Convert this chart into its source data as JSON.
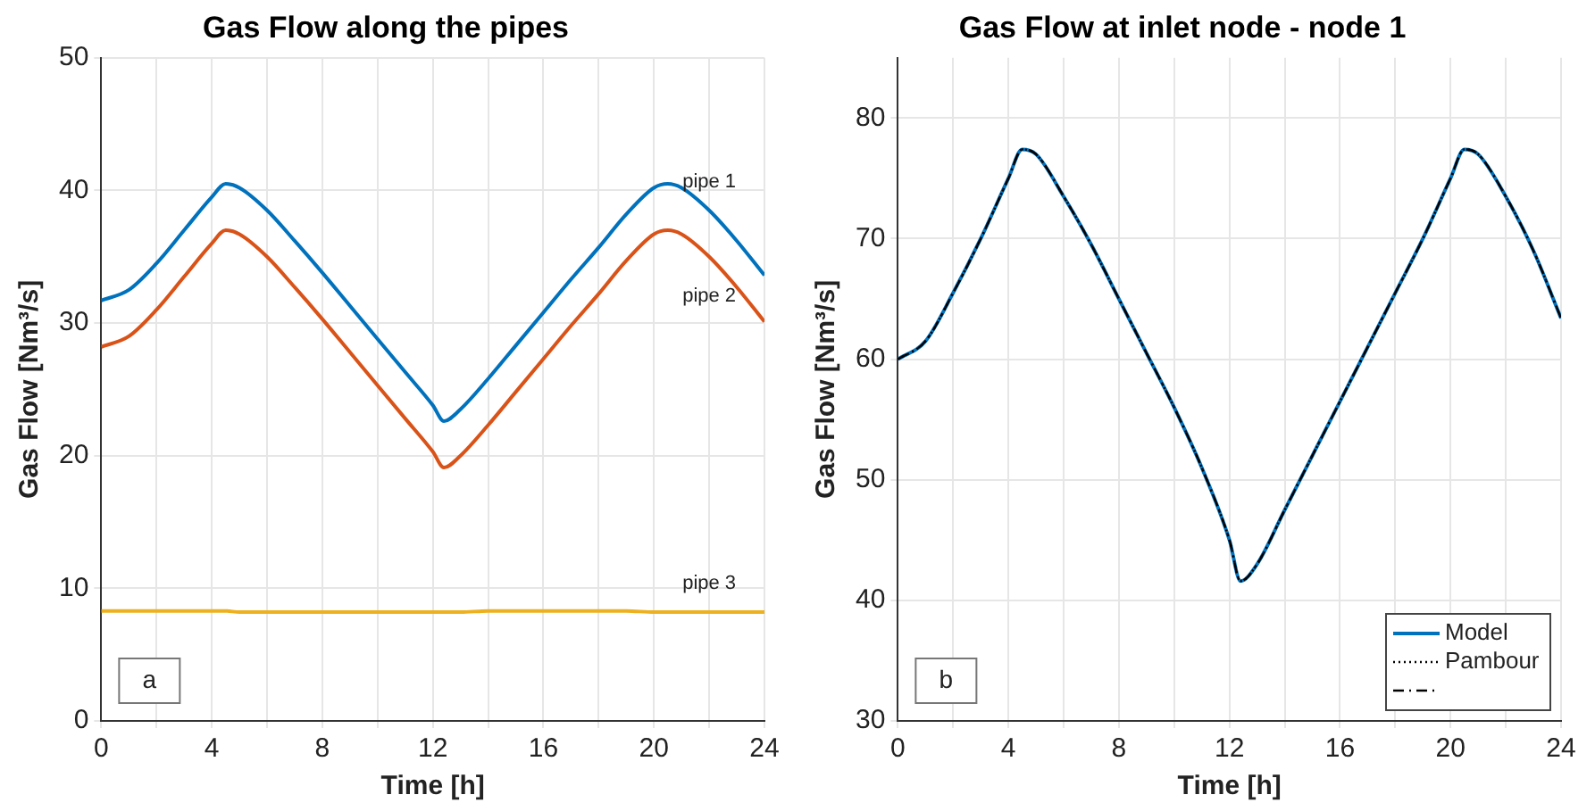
{
  "chart_data": [
    {
      "type": "line",
      "title": "Gas Flow along the pipes",
      "xlabel": "Time [h]",
      "ylabel": "Gas Flow [Nm³/s]",
      "x": [
        0,
        1,
        2,
        3,
        4,
        4.5,
        5,
        6,
        7,
        8,
        9,
        10,
        11,
        12,
        12.4,
        13,
        14,
        15,
        16,
        17,
        18,
        19,
        20,
        20.5,
        21,
        22,
        23,
        24
      ],
      "series": [
        {
          "name": "pipe 1",
          "color": "#0072bd",
          "values": [
            31.7,
            32.5,
            34.5,
            37,
            39.5,
            40.5,
            40.2,
            38.5,
            36.2,
            33.8,
            31.3,
            28.8,
            26.3,
            23.8,
            22.6,
            23.5,
            25.8,
            28.3,
            30.8,
            33.3,
            35.7,
            38.2,
            40.2,
            40.5,
            40.2,
            38.5,
            36.2,
            33.6
          ]
        },
        {
          "name": "pipe 2",
          "color": "#d95319",
          "values": [
            28.2,
            29,
            31,
            33.5,
            36,
            37,
            36.7,
            35,
            32.7,
            30.3,
            27.8,
            25.3,
            22.8,
            20.3,
            19.1,
            20,
            22.3,
            24.8,
            27.3,
            29.8,
            32.2,
            34.7,
            36.7,
            37,
            36.7,
            35,
            32.7,
            30.1
          ]
        },
        {
          "name": "pipe 3",
          "color": "#edb120",
          "values": [
            8.3,
            8.3,
            8.3,
            8.3,
            8.3,
            8.3,
            8.2,
            8.2,
            8.2,
            8.2,
            8.2,
            8.2,
            8.2,
            8.2,
            8.2,
            8.2,
            8.3,
            8.3,
            8.3,
            8.3,
            8.3,
            8.3,
            8.2,
            8.2,
            8.2,
            8.2,
            8.2,
            8.2
          ]
        }
      ],
      "xlim": [
        0,
        24
      ],
      "xticks": [
        0,
        {
          "value": 2,
          "label": null
        },
        4,
        {
          "value": 6,
          "label": null
        },
        8,
        {
          "value": 10,
          "label": null
        },
        12,
        {
          "value": 14,
          "label": null
        },
        16,
        {
          "value": 18,
          "label": null
        },
        20,
        {
          "value": 22,
          "label": null
        },
        24
      ],
      "ylim": [
        0,
        50
      ],
      "yticks": [
        0,
        10,
        20,
        30,
        40,
        50
      ],
      "grid": true,
      "legend": false,
      "marker": "none",
      "line_style": "solid",
      "annotations": [
        "a"
      ]
    },
    {
      "type": "line",
      "title": "Gas Flow at inlet node - node 1",
      "xlabel": "Time [h]",
      "ylabel": "Gas Flow [Nm³/s]",
      "x": [
        0,
        1,
        2,
        3,
        4,
        4.5,
        5,
        6,
        7,
        8,
        9,
        10,
        11,
        12,
        12.4,
        13,
        14,
        15,
        16,
        17,
        18,
        19,
        20,
        20.5,
        21,
        22,
        23,
        24
      ],
      "series": [
        {
          "name": "Model",
          "color": "#0072bd",
          "line_style": "solid",
          "values": [
            60,
            61.5,
            65.5,
            70,
            75,
            77.4,
            77,
            73.5,
            69.5,
            65,
            60.5,
            56,
            51,
            45,
            41.6,
            43,
            47.5,
            52,
            56.5,
            61,
            65.5,
            70,
            75,
            77.4,
            77,
            73.5,
            69,
            63.4
          ]
        },
        {
          "name": "Pambour",
          "color": "#000000",
          "line_style": "dotted",
          "values": [
            60,
            61.5,
            65.5,
            70,
            75,
            77.4,
            77,
            73.5,
            69.5,
            65,
            60.5,
            56,
            51,
            45,
            41.6,
            43,
            47.5,
            52,
            56.5,
            61,
            65.5,
            70,
            75,
            77.4,
            77,
            73.5,
            69,
            63.4
          ]
        },
        {
          "color": "#000000",
          "line_style": "dashed",
          "values": [
            60,
            61.5,
            65.5,
            70,
            75,
            77.4,
            77,
            73.5,
            69.5,
            65,
            60.5,
            56,
            51,
            45,
            41.6,
            43,
            47.5,
            52,
            56.5,
            61,
            65.5,
            70,
            75,
            77.4,
            77,
            73.5,
            69,
            63.4
          ]
        }
      ],
      "xlim": [
        0,
        24
      ],
      "xticks": [
        0,
        {
          "value": 2,
          "label": null
        },
        4,
        {
          "value": 6,
          "label": null
        },
        8,
        {
          "value": 10,
          "label": null
        },
        12,
        {
          "value": 14,
          "label": null
        },
        16,
        {
          "value": 18,
          "label": null
        },
        20,
        {
          "value": 22,
          "label": null
        },
        24
      ],
      "ylim": [
        30,
        85
      ],
      "yticks": [
        30,
        40,
        50,
        60,
        70,
        80
      ],
      "grid": true,
      "legend": "bottom right",
      "marker": "none",
      "annotations": [
        "b"
      ]
    }
  ]
}
